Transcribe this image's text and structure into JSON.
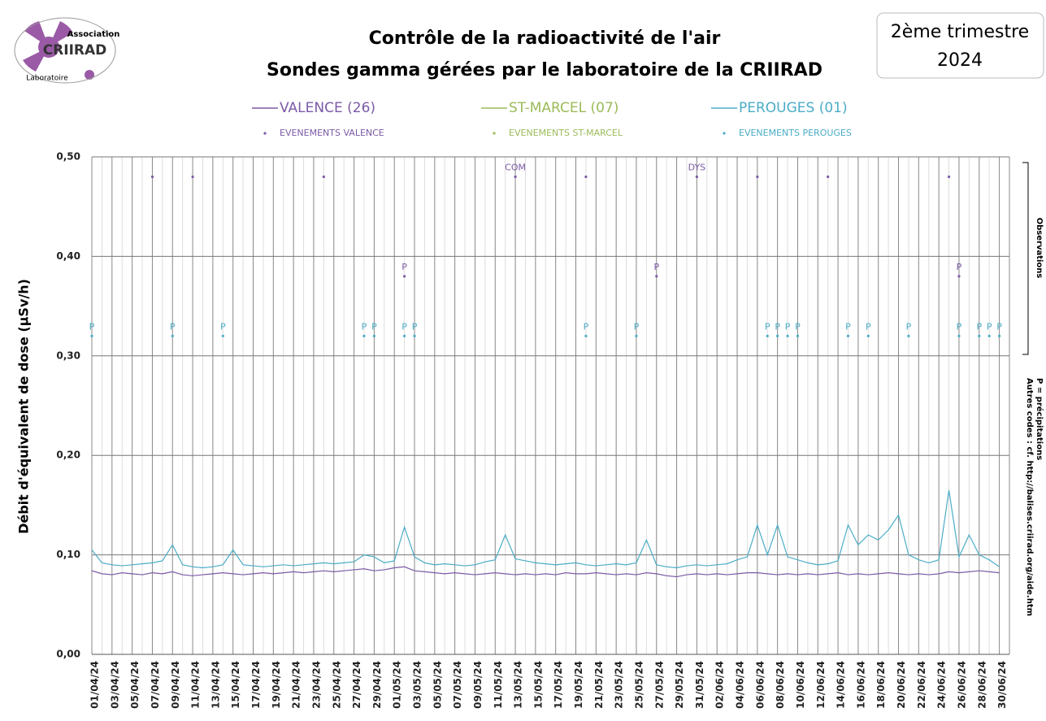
{
  "chart_data": {
    "type": "line",
    "title": [
      "Contrôle de la radioactivité de l'air",
      "Sondes gamma gérées par le laboratoire de la CRIIRAD"
    ],
    "period": [
      "2ème trimestre",
      "2024"
    ],
    "logo": {
      "top": "Association",
      "name": "CRIIRAD",
      "bottom": "Laboratoire"
    },
    "ylabel": "Débit d'équivalent de dose (µSv/h)",
    "notes": {
      "observations": "Observations",
      "codes": [
        "P = précipitations",
        "Autres codes : cf. http://balises.criirad.org/aide.htm"
      ]
    },
    "ylim": [
      0,
      0.5
    ],
    "yticks": [
      {
        "value": 0,
        "label": "0,00"
      },
      {
        "value": 0.1,
        "label": "0,10"
      },
      {
        "value": 0.2,
        "label": "0,20"
      },
      {
        "value": 0.3,
        "label": "0,30"
      },
      {
        "value": 0.4,
        "label": "0,40"
      },
      {
        "value": 0.5,
        "label": "0,50"
      }
    ],
    "grid": true,
    "categories": [
      "01/04/24",
      null,
      "03/04/24",
      null,
      "05/04/24",
      null,
      "07/04/24",
      null,
      "09/04/24",
      null,
      "11/04/24",
      null,
      "13/04/24",
      null,
      "15/04/24",
      null,
      "17/04/24",
      null,
      "19/04/24",
      null,
      "21/04/24",
      null,
      "23/04/24",
      null,
      "25/04/24",
      null,
      "27/04/24",
      null,
      "29/04/24",
      null,
      "01/05/24",
      null,
      "03/05/24",
      null,
      "05/05/24",
      null,
      "07/05/24",
      null,
      "09/05/24",
      null,
      "11/05/24",
      null,
      "13/05/24",
      null,
      "15/05/24",
      null,
      "17/05/24",
      null,
      "19/05/24",
      null,
      "21/05/24",
      null,
      "23/05/24",
      null,
      "25/05/24",
      null,
      "27/05/24",
      null,
      "29/05/24",
      null,
      "31/05/24",
      null,
      "02/06/24",
      null,
      "04/06/24",
      null,
      "06/06/24",
      null,
      "08/06/24",
      null,
      "10/06/24",
      null,
      "12/06/24",
      null,
      "14/06/24",
      null,
      "16/06/24",
      null,
      "18/06/24",
      null,
      "20/06/24",
      null,
      "22/06/24",
      null,
      "24/06/24",
      null,
      "26/06/24",
      null,
      "28/06/24",
      null,
      "30/06/24"
    ],
    "series": [
      {
        "name": "VALENCE (26)",
        "color": "#7b5aa6",
        "values": [
          0.084,
          0.081,
          0.08,
          0.082,
          0.081,
          0.08,
          0.082,
          0.081,
          0.083,
          0.08,
          0.079,
          0.08,
          0.081,
          0.082,
          0.081,
          0.08,
          0.081,
          0.082,
          0.081,
          0.082,
          0.083,
          0.082,
          0.083,
          0.084,
          0.083,
          0.084,
          0.085,
          0.086,
          0.084,
          0.085,
          0.087,
          0.088,
          0.084,
          0.083,
          0.082,
          0.081,
          0.082,
          0.081,
          0.08,
          0.081,
          0.082,
          0.081,
          0.08,
          0.081,
          0.08,
          0.081,
          0.08,
          0.082,
          0.081,
          0.081,
          0.082,
          0.081,
          0.08,
          0.081,
          0.08,
          0.082,
          0.081,
          0.079,
          0.078,
          0.08,
          0.081,
          0.08,
          0.081,
          0.08,
          0.081,
          0.082,
          0.082,
          0.081,
          0.08,
          0.081,
          0.08,
          0.081,
          0.08,
          0.081,
          0.082,
          0.08,
          0.081,
          0.08,
          0.081,
          0.082,
          0.081,
          0.08,
          0.081,
          0.08,
          0.081,
          0.083,
          0.082,
          0.083,
          0.084,
          0.083,
          0.082
        ]
      },
      {
        "name": "ST-MARCEL (07)",
        "color": "#9bbb59"
      },
      {
        "name": "PEROUGES (01)",
        "color": "#4bacc6",
        "values": [
          0.105,
          0.092,
          0.09,
          0.089,
          0.09,
          0.091,
          0.092,
          0.094,
          0.11,
          0.09,
          0.088,
          0.087,
          0.088,
          0.09,
          0.105,
          0.09,
          0.089,
          0.088,
          0.089,
          0.09,
          0.089,
          0.09,
          0.091,
          0.092,
          0.091,
          0.092,
          0.093,
          0.1,
          0.098,
          0.092,
          0.094,
          0.128,
          0.098,
          0.092,
          0.09,
          0.091,
          0.09,
          0.089,
          0.09,
          0.093,
          0.095,
          0.12,
          0.096,
          0.094,
          0.092,
          0.091,
          0.09,
          0.091,
          0.092,
          0.09,
          0.089,
          0.09,
          0.091,
          0.09,
          0.092,
          0.115,
          0.09,
          0.088,
          0.087,
          0.089,
          0.09,
          0.089,
          0.09,
          0.091,
          0.095,
          0.098,
          0.13,
          0.1,
          0.13,
          0.098,
          0.095,
          0.092,
          0.09,
          0.091,
          0.094,
          0.13,
          0.11,
          0.12,
          0.115,
          0.125,
          0.14,
          0.1,
          0.095,
          0.092,
          0.095,
          0.165,
          0.098,
          0.12,
          0.1,
          0.095,
          0.088
        ]
      }
    ],
    "events": [
      {
        "name": "EVENEMENTS VALENCE",
        "color": "#7b5aa6",
        "points": [
          {
            "x": "07/04/24",
            "y": 0.48
          },
          {
            "x": "11/04/24",
            "y": 0.48
          },
          {
            "x": "24/04/24",
            "y": 0.48
          },
          {
            "x": "13/05/24",
            "y": 0.48,
            "label": "COM"
          },
          {
            "x": "20/05/24",
            "y": 0.48
          },
          {
            "x": "31/05/24",
            "y": 0.48,
            "label": "DYS"
          },
          {
            "x": "06/06/24",
            "y": 0.48
          },
          {
            "x": "13/06/24",
            "y": 0.48
          },
          {
            "x": "25/06/24",
            "y": 0.48
          },
          {
            "x": "02/05/24",
            "y": 0.38,
            "label": "P"
          },
          {
            "x": "27/05/24",
            "y": 0.38,
            "label": "P"
          },
          {
            "x": "26/06/24",
            "y": 0.38,
            "label": "P"
          }
        ]
      },
      {
        "name": "EVENEMENTS ST-MARCEL",
        "color": "#9bbb59",
        "points": []
      },
      {
        "name": "EVENEMENTS PEROUGES",
        "color": "#4bacc6",
        "points": [
          {
            "x": "01/04/24",
            "y": 0.32,
            "label": "P"
          },
          {
            "x": "09/04/24",
            "y": 0.32,
            "label": "P"
          },
          {
            "x": "14/04/24",
            "y": 0.32,
            "label": "P"
          },
          {
            "x": "28/04/24",
            "y": 0.32,
            "label": "P"
          },
          {
            "x": "29/04/24",
            "y": 0.32,
            "label": "P"
          },
          {
            "x": "02/05/24",
            "y": 0.32,
            "label": "P"
          },
          {
            "x": "03/05/24",
            "y": 0.32,
            "label": "P"
          },
          {
            "x": "20/05/24",
            "y": 0.32,
            "label": "P"
          },
          {
            "x": "25/05/24",
            "y": 0.32,
            "label": "P"
          },
          {
            "x": "07/06/24",
            "y": 0.32,
            "label": "P"
          },
          {
            "x": "08/06/24",
            "y": 0.32,
            "label": "P"
          },
          {
            "x": "09/06/24",
            "y": 0.32,
            "label": "P"
          },
          {
            "x": "10/06/24",
            "y": 0.32,
            "label": "P"
          },
          {
            "x": "15/06/24",
            "y": 0.32,
            "label": "P"
          },
          {
            "x": "17/06/24",
            "y": 0.32,
            "label": "P"
          },
          {
            "x": "21/06/24",
            "y": 0.32,
            "label": "P"
          },
          {
            "x": "26/06/24",
            "y": 0.32,
            "label": "P"
          },
          {
            "x": "28/06/24",
            "y": 0.32,
            "label": "P"
          },
          {
            "x": "29/06/24",
            "y": 0.32,
            "label": "P"
          },
          {
            "x": "30/06/24",
            "y": 0.32,
            "label": "P"
          }
        ]
      }
    ]
  }
}
